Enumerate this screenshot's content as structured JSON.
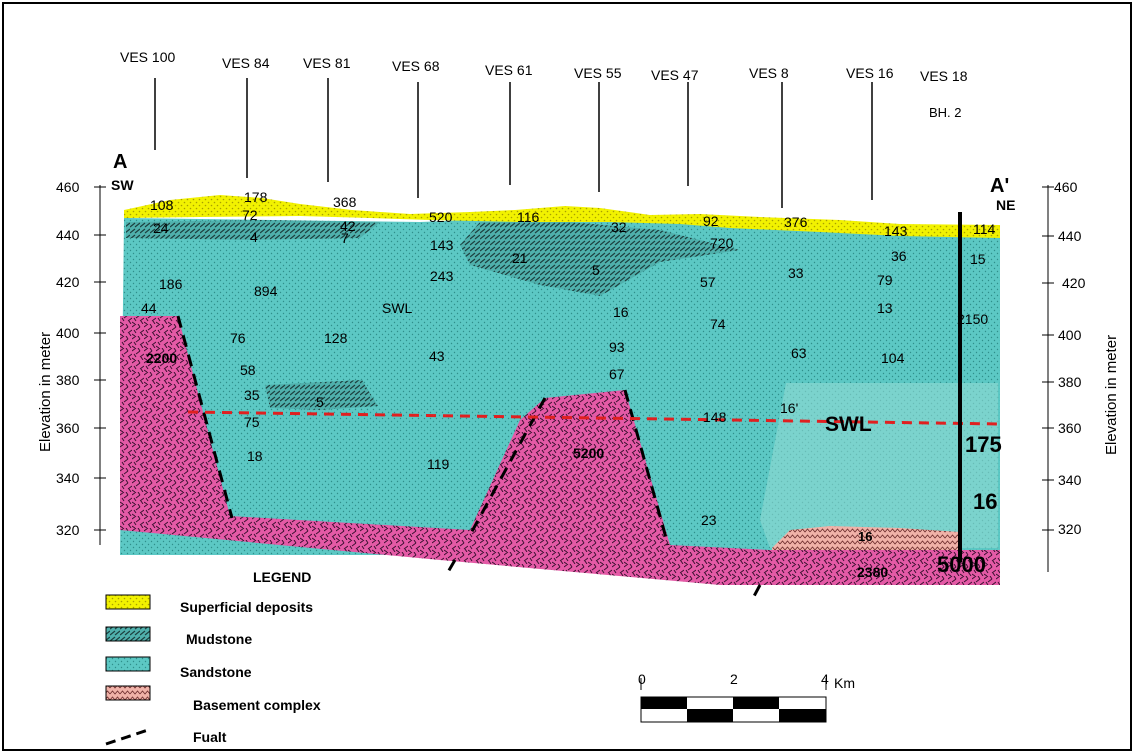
{
  "section": {
    "end_left": "A",
    "end_left_dir": "SW",
    "end_right": "A'",
    "end_right_dir": "NE",
    "axis_label_left": "Elevation in meter",
    "axis_label_right": "Elevation in meter",
    "elevation_ticks": [
      "460",
      "440",
      "420",
      "400",
      "380",
      "360",
      "340",
      "320"
    ],
    "ves_stations": [
      "VES 100",
      "VES 84",
      "VES 81",
      "VES 68",
      "VES 61",
      "VES 55",
      "VES 47",
      "VES 8",
      "VES 16",
      "VES 18"
    ],
    "borehole_label": "BH. 2",
    "swl_label_small": "SWL",
    "swl_label_large": "SWL",
    "resistivity_values": [
      "108",
      "178",
      "368",
      "520",
      "116",
      "32",
      "92",
      "376",
      "143",
      "114",
      "24",
      "72",
      "4",
      "42",
      "7",
      "143",
      "243",
      "21",
      "5",
      "720",
      "36",
      "15",
      "186",
      "894",
      "57",
      "33",
      "79",
      "44",
      "16",
      "13",
      "2150",
      "76",
      "128",
      "74",
      "93",
      "43",
      "63",
      "104",
      "58",
      "67",
      "35",
      "5",
      "75",
      "148",
      "16'",
      "18",
      "119",
      "23",
      "16"
    ],
    "basement_values": [
      "2200",
      "5200",
      "2380"
    ],
    "borehole_values": [
      "175",
      "16",
      "5000"
    ]
  },
  "legend": {
    "title": "LEGEND",
    "items": [
      {
        "label": "Superficial deposits",
        "pattern": "superficial"
      },
      {
        "label": "Mudstone",
        "pattern": "mudstone"
      },
      {
        "label": "Sandstone",
        "pattern": "sandstone"
      },
      {
        "label": "Basement complex",
        "pattern": "basement"
      },
      {
        "label": "Fualt",
        "pattern": "fault"
      }
    ]
  },
  "scale_bar": {
    "ticks": [
      "0",
      "2",
      "4"
    ],
    "unit": "Km"
  },
  "colors": {
    "superficial": "#f2f200",
    "sandstone": "#5cc8c4",
    "mudstone": "#3a9a96",
    "basement": "#e45aa6",
    "swl_line": "#e02020",
    "fault_line": "#000000"
  }
}
